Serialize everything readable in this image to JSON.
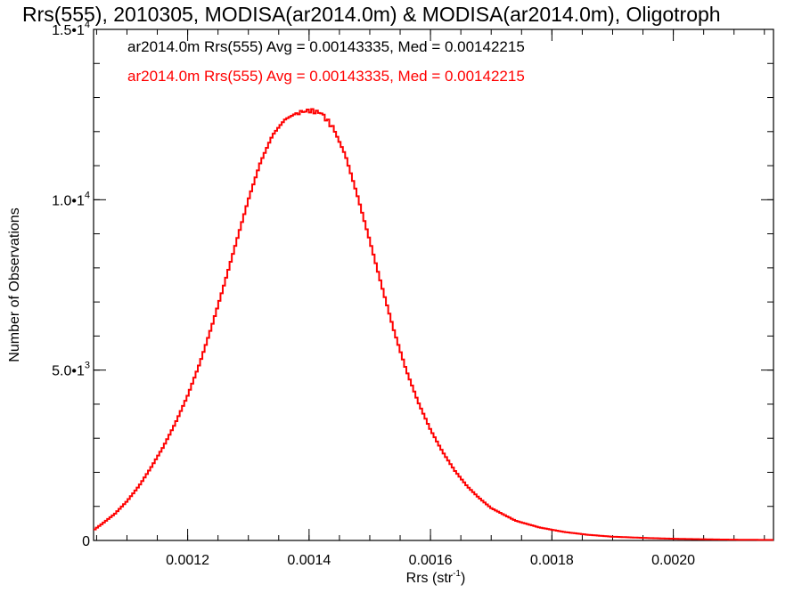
{
  "chart_data": {
    "type": "histogram-step",
    "title": "Rrs(555), 2010305, MODISA(ar2014.0m) & MODISA(ar2014.0m), Oligotroph",
    "xlabel": {
      "base": "Rrs (str",
      "sup": "-1",
      "end": ")"
    },
    "ylabel": "Number of Observations",
    "xlim": [
      0.001045,
      0.002165
    ],
    "ylim": [
      0,
      15000
    ],
    "x_major_ticks": [
      0.0012,
      0.0014,
      0.0016,
      0.0018,
      0.002
    ],
    "x_tick_labels": [
      "0.0012",
      "0.0014",
      "0.0016",
      "0.0018",
      "0.0020"
    ],
    "x_minor_step": 5e-05,
    "y_major_ticks": [
      0,
      5000,
      10000,
      15000
    ],
    "y_tick_labels": [
      {
        "base": "0",
        "sup": ""
      },
      {
        "base": "5.0•1",
        "sup": "3"
      },
      {
        "base": "1.0•1",
        "sup": "4"
      },
      {
        "base": "1.5•1",
        "sup": "4"
      }
    ],
    "y_minor_step": 1000,
    "grid": false,
    "legend": [
      {
        "text": "ar2014.0m Rrs(555) Avg = 0.00143335, Med = 0.00142215",
        "color": "#000000"
      },
      {
        "text": "ar2014.0m Rrs(555) Avg = 0.00143335, Med = 0.00142215",
        "color": "#ff0000"
      }
    ],
    "series": [
      {
        "color": "#ff0000",
        "points": [
          [
            0.001045,
            300
          ],
          [
            0.00106,
            500
          ],
          [
            0.00108,
            780
          ],
          [
            0.0011,
            1150
          ],
          [
            0.00112,
            1600
          ],
          [
            0.00114,
            2150
          ],
          [
            0.00116,
            2750
          ],
          [
            0.00118,
            3450
          ],
          [
            0.0012,
            4250
          ],
          [
            0.00122,
            5200
          ],
          [
            0.00124,
            6300
          ],
          [
            0.00126,
            7500
          ],
          [
            0.00128,
            8750
          ],
          [
            0.0013,
            10000
          ],
          [
            0.00132,
            11100
          ],
          [
            0.00134,
            11900
          ],
          [
            0.00136,
            12350
          ],
          [
            0.00138,
            12550
          ],
          [
            0.0014,
            12620
          ],
          [
            0.00142,
            12550
          ],
          [
            0.00144,
            12100
          ],
          [
            0.00146,
            11300
          ],
          [
            0.00148,
            10100
          ],
          [
            0.0015,
            8800
          ],
          [
            0.00152,
            7450
          ],
          [
            0.00154,
            6150
          ],
          [
            0.00156,
            5000
          ],
          [
            0.00158,
            4050
          ],
          [
            0.0016,
            3250
          ],
          [
            0.00162,
            2600
          ],
          [
            0.00164,
            2050
          ],
          [
            0.00166,
            1600
          ],
          [
            0.00168,
            1250
          ],
          [
            0.0017,
            950
          ],
          [
            0.00174,
            580
          ],
          [
            0.00178,
            380
          ],
          [
            0.00182,
            250
          ],
          [
            0.00186,
            165
          ],
          [
            0.0019,
            110
          ],
          [
            0.00196,
            70
          ],
          [
            0.002,
            50
          ],
          [
            0.00206,
            32
          ],
          [
            0.0021,
            22
          ],
          [
            0.002165,
            15
          ]
        ]
      }
    ]
  }
}
